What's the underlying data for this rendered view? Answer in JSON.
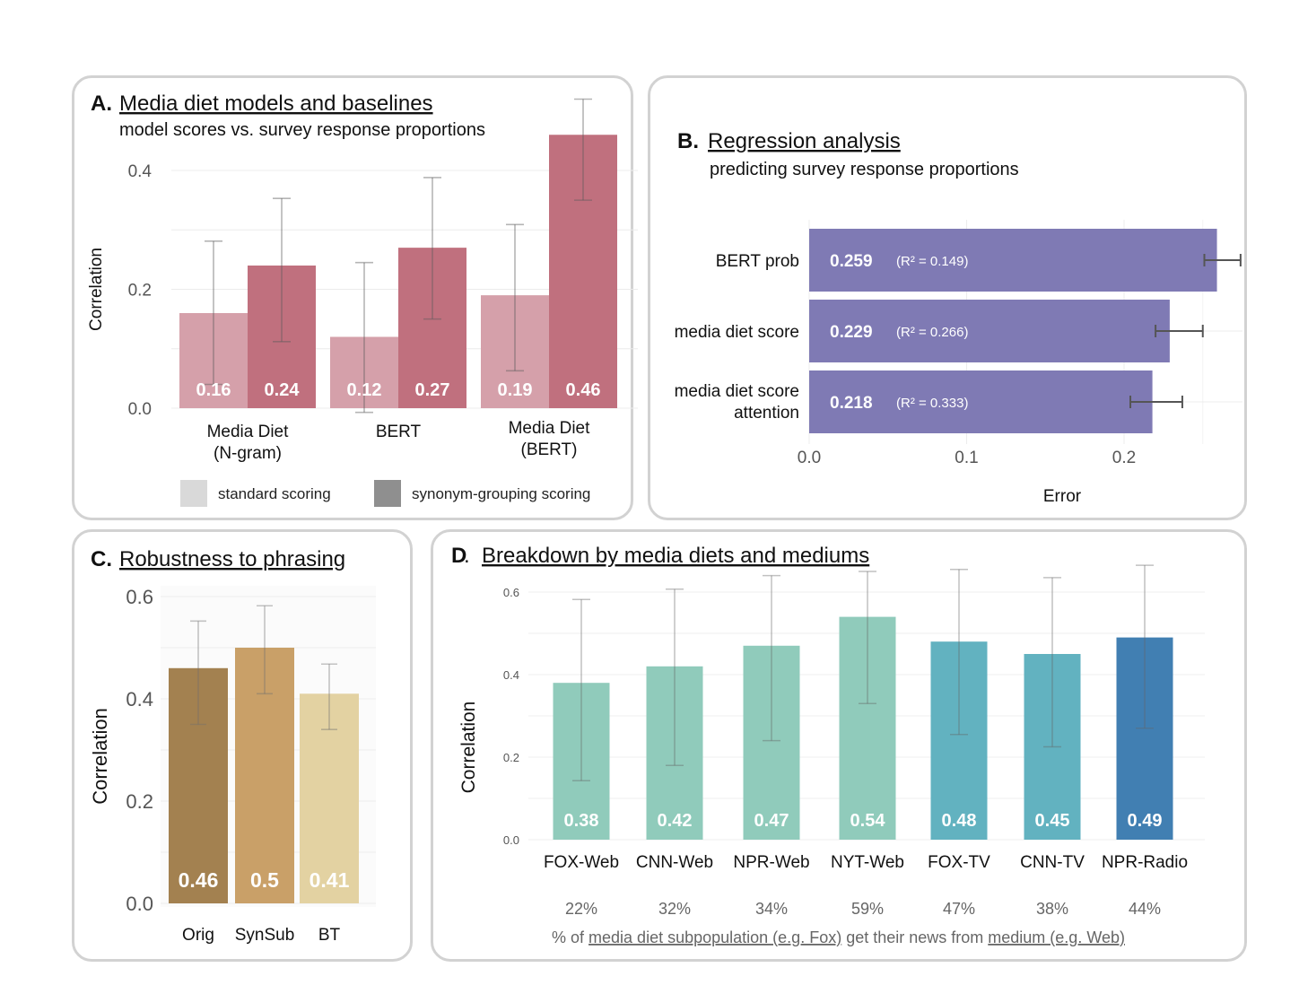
{
  "colors": {
    "a_standard": "#d5a0aa",
    "a_synonym": "#c0707e",
    "b_bar": "#7f7ab4",
    "c": [
      "#a38150",
      "#c9a068",
      "#e3d2a2"
    ],
    "d": [
      "#90cbbb",
      "#90cbbb",
      "#90cbbb",
      "#90cbbb",
      "#62b2c0",
      "#62b2c0",
      "#417fb2"
    ],
    "legend_standard": "#d9d9d9",
    "legend_synonym": "#8f8f8f"
  },
  "panelA": {
    "letter": "A.",
    "title": "Media diet models and baselines",
    "subtitle": "model scores vs. survey response proportions",
    "legend": {
      "standard": "standard scoring",
      "synonym": "synonym-grouping scoring"
    }
  },
  "panelB": {
    "letter": "B.",
    "title": "Regression analysis",
    "subtitle": "predicting survey response proportions"
  },
  "panelC": {
    "letter": "C.",
    "title": "Robustness to phrasing"
  },
  "panelD": {
    "letter": "D",
    "title": "Breakdown by media diets and mediums",
    "percents": [
      "22%",
      "32%",
      "34%",
      "59%",
      "47%",
      "38%",
      "44%"
    ],
    "footnote": {
      "p1": "% of ",
      "link1": "media diet subpopulation (e.g. Fox)",
      "p2": " get their news from ",
      "link2": "medium (e.g. Web)"
    }
  },
  "chart_data": [
    {
      "id": "A",
      "type": "bar",
      "ylabel": "Correlation",
      "ylim": [
        0,
        0.48
      ],
      "yticks": [
        "0.0",
        "0.2",
        "0.4"
      ],
      "categories": [
        "Media Diet\n(N-gram)",
        "BERT",
        "Media Diet\n(BERT)"
      ],
      "series": [
        {
          "name": "standard scoring",
          "values": [
            0.16,
            0.12,
            0.19
          ],
          "labels": [
            "0.16",
            "0.12",
            "0.19"
          ],
          "err_low": [
            0.04,
            -0.007,
            0.063
          ],
          "err_high": [
            0.281,
            0.245,
            0.309
          ]
        },
        {
          "name": "synonym-grouping scoring",
          "values": [
            0.24,
            0.27,
            0.46
          ],
          "labels": [
            "0.24",
            "0.27",
            "0.46"
          ],
          "err_low": [
            0.112,
            0.15,
            0.35
          ],
          "err_high": [
            0.353,
            0.388,
            0.52
          ]
        }
      ]
    },
    {
      "id": "B",
      "type": "bar",
      "orientation": "horizontal",
      "xlabel": "Error",
      "xlim": [
        0,
        0.275
      ],
      "xticks": [
        "0.0",
        "0.1",
        "0.2"
      ],
      "categories": [
        "BERT prob",
        "media diet score",
        "media diet score\nattention"
      ],
      "values": [
        0.259,
        0.229,
        0.218
      ],
      "labels": [
        "0.259",
        "0.229",
        "0.218"
      ],
      "r2": [
        "(R² = 0.149)",
        "(R² = 0.266)",
        "(R² = 0.333)"
      ],
      "err_low": [
        0.251,
        0.22,
        0.204
      ],
      "err_high": [
        0.274,
        0.25,
        0.237
      ]
    },
    {
      "id": "C",
      "type": "bar",
      "ylabel": "Correlation",
      "ylim": [
        0,
        0.62
      ],
      "yticks": [
        "0.0",
        "0.2",
        "0.4",
        "0.6"
      ],
      "categories": [
        "Orig",
        "SynSub",
        "BT"
      ],
      "values": [
        0.46,
        0.5,
        0.41
      ],
      "labels": [
        "0.46",
        "0.5",
        "0.41"
      ],
      "err_low": [
        0.35,
        0.41,
        0.34
      ],
      "err_high": [
        0.552,
        0.582,
        0.468
      ]
    },
    {
      "id": "D",
      "type": "bar",
      "ylabel": "Correlation",
      "ylim": [
        0,
        0.6
      ],
      "yticks": [
        "0.0",
        "0.2",
        "0.4",
        "0.6"
      ],
      "categories": [
        "FOX-Web",
        "CNN-Web",
        "NPR-Web",
        "NYT-Web",
        "FOX-TV",
        "CNN-TV",
        "NPR-Radio"
      ],
      "values": [
        0.38,
        0.42,
        0.47,
        0.54,
        0.48,
        0.45,
        0.49
      ],
      "labels": [
        "0.38",
        "0.42",
        "0.47",
        "0.54",
        "0.48",
        "0.45",
        "0.49"
      ],
      "err_low": [
        0.143,
        0.18,
        0.24,
        0.33,
        0.255,
        0.225,
        0.27
      ],
      "err_high": [
        0.582,
        0.607,
        0.64,
        0.65,
        0.655,
        0.635,
        0.665
      ]
    }
  ]
}
